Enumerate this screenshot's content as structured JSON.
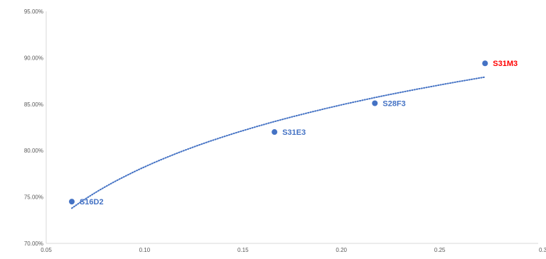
{
  "colors": {
    "marker": "#4472C4",
    "label": "#4472C4",
    "highlight": "#FF0000",
    "axis": "#D9D9D9",
    "tick_text": "#595959"
  },
  "chart_data": {
    "type": "scatter",
    "title": "",
    "xlabel": "",
    "ylabel": "",
    "xlim": [
      0.05,
      0.3
    ],
    "ylim": [
      0.7,
      0.95
    ],
    "x_ticks": [
      0.05,
      0.1,
      0.15,
      0.2,
      0.25,
      0.3
    ],
    "x_tick_labels": [
      "0.05",
      "0.10",
      "0.15",
      "0.20",
      "0.25",
      "0.3"
    ],
    "y_ticks": [
      0.7,
      0.75,
      0.8,
      0.85,
      0.9,
      0.95
    ],
    "y_tick_labels": [
      "70.00%",
      "75.00%",
      "80.00%",
      "85.00%",
      "90.00%",
      "95.00%"
    ],
    "grid": false,
    "points": [
      {
        "label": "S16D2",
        "x": 0.063,
        "y": 0.745,
        "highlight": false
      },
      {
        "label": "S31E3",
        "x": 0.166,
        "y": 0.82,
        "highlight": false
      },
      {
        "label": "S28F3",
        "x": 0.217,
        "y": 0.851,
        "highlight": false
      },
      {
        "label": "S31M3",
        "x": 0.273,
        "y": 0.894,
        "highlight": true
      }
    ],
    "trendline": {
      "type": "logarithmic",
      "style": "dotted",
      "x_range": [
        0.063,
        0.273
      ],
      "samples": [
        {
          "x": 0.063,
          "y": 0.739
        },
        {
          "x": 0.1,
          "y": 0.781
        },
        {
          "x": 0.15,
          "y": 0.821
        },
        {
          "x": 0.2,
          "y": 0.85
        },
        {
          "x": 0.25,
          "y": 0.87
        },
        {
          "x": 0.273,
          "y": 0.88
        }
      ]
    }
  }
}
